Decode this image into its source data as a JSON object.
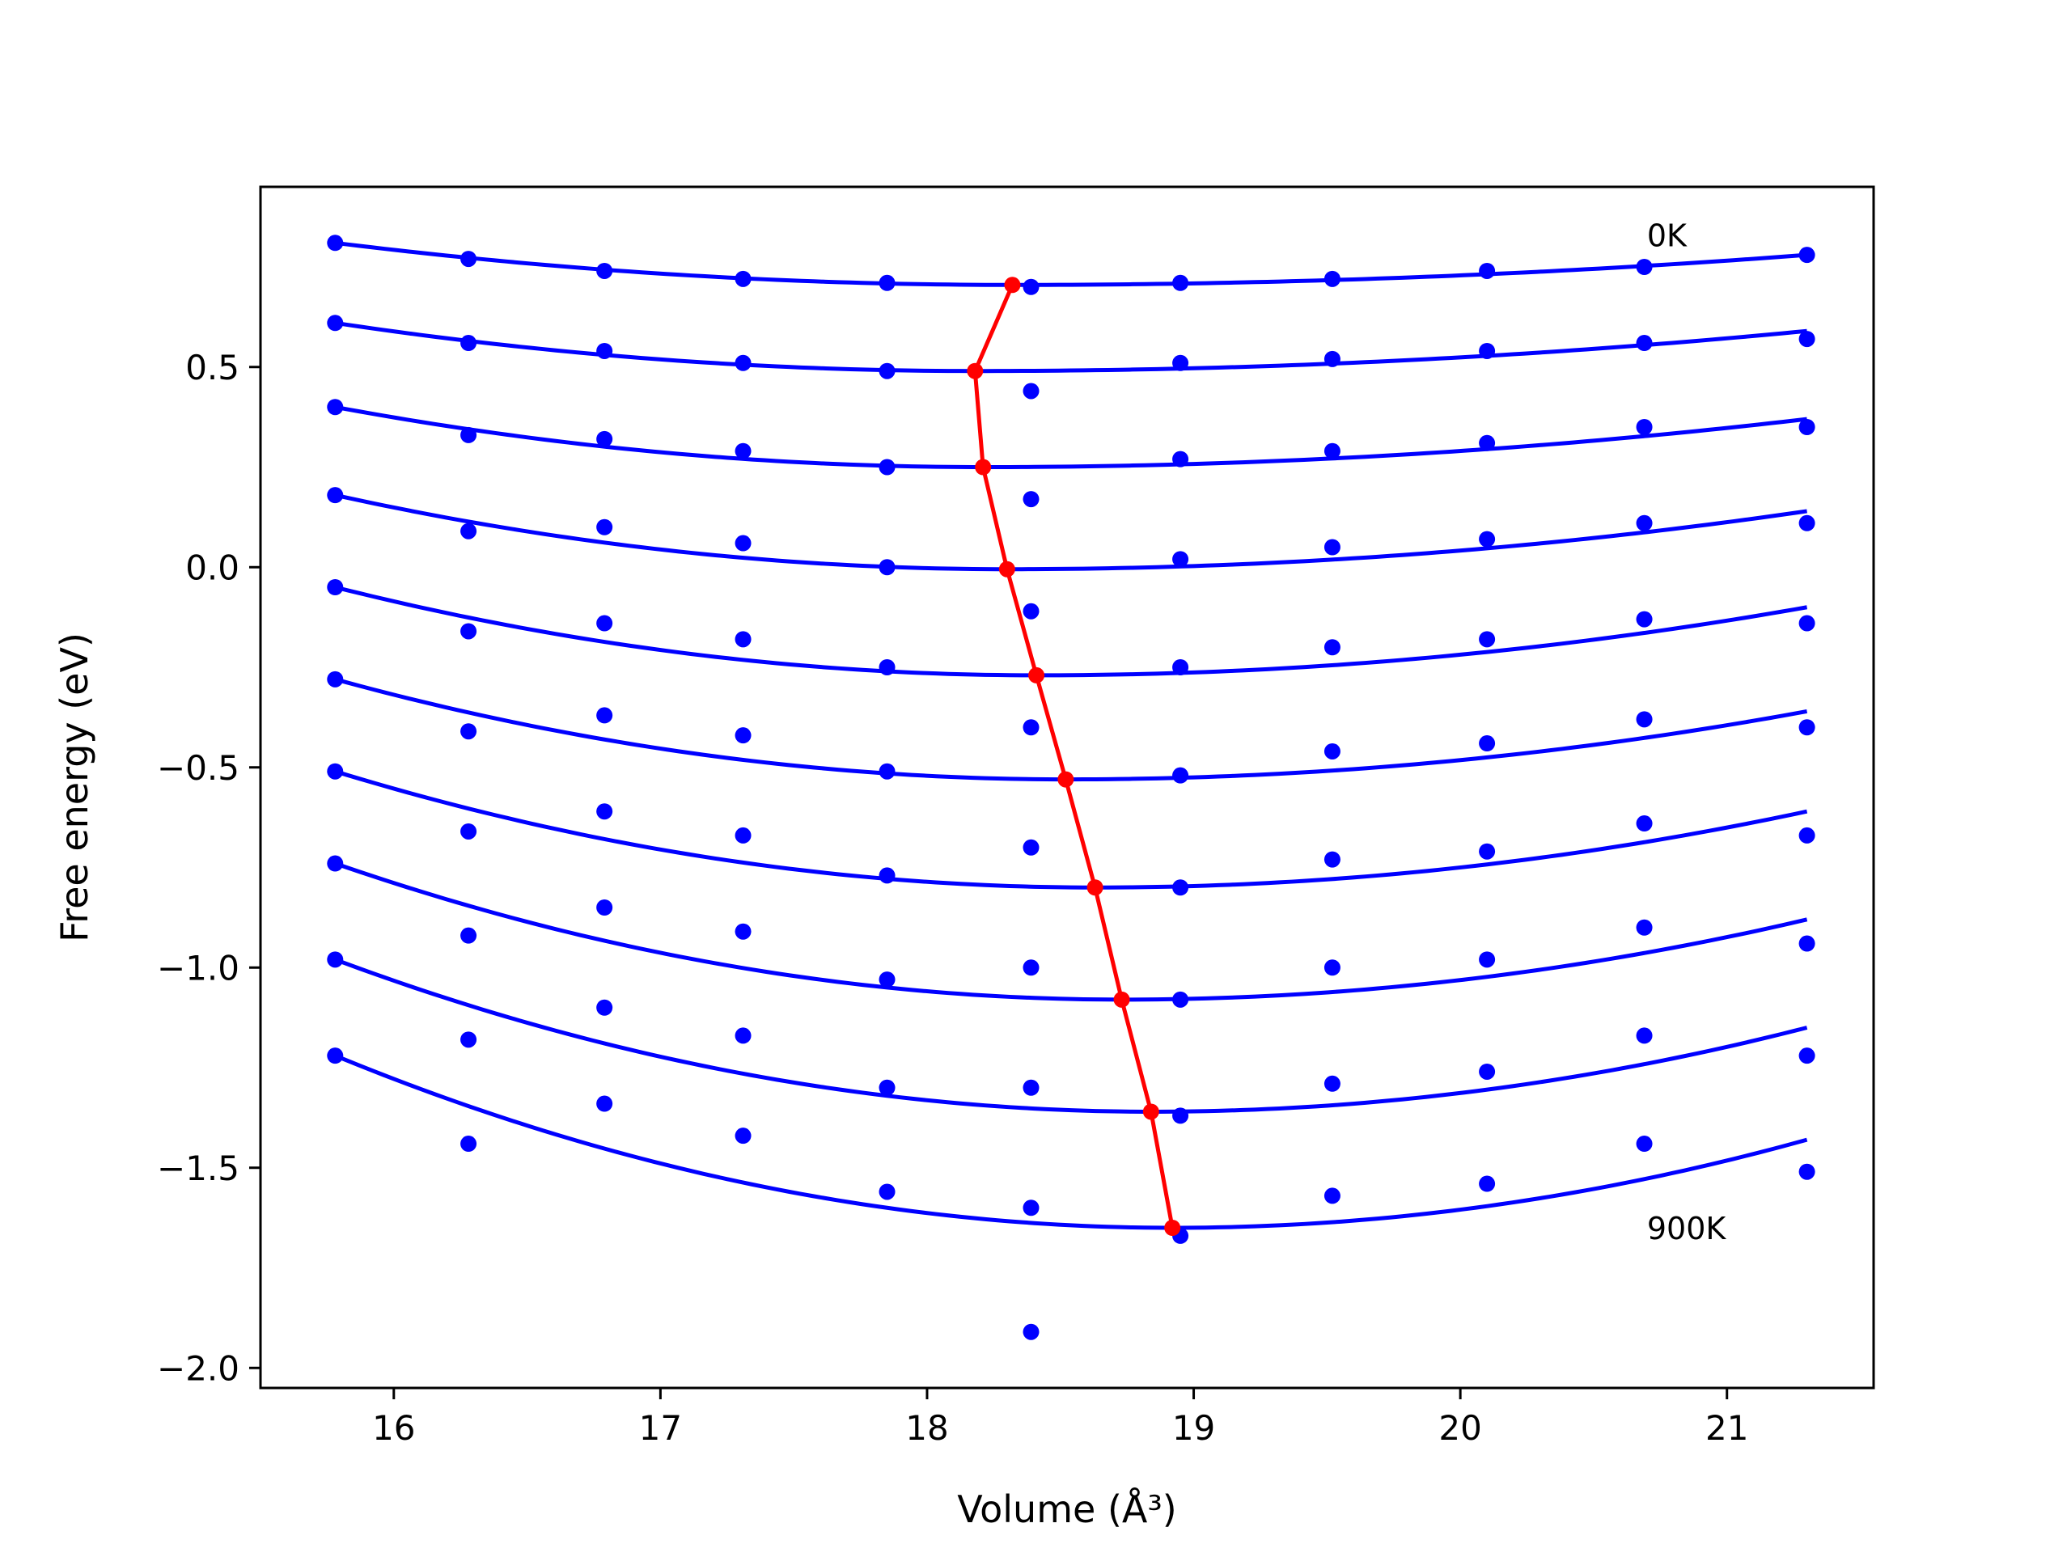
{
  "chart_data": {
    "type": "line",
    "title": "",
    "xlabel": "Volume (Å³)",
    "ylabel": "Free energy (eV)",
    "xlim": [
      15.5,
      21.55
    ],
    "ylim": [
      -2.05,
      0.95
    ],
    "xticks": [
      16,
      17,
      18,
      19,
      20,
      21
    ],
    "yticks": [
      0.5,
      0.0,
      -0.5,
      -1.0,
      -1.5,
      -2.0
    ],
    "xtick_labels": [
      "16",
      "17",
      "18",
      "19",
      "20",
      "21"
    ],
    "ytick_labels": [
      "0.5",
      "0.0",
      "−0.5",
      "−1.0",
      "−1.5",
      "−2.0"
    ],
    "grid": false,
    "legend": "none",
    "colors": {
      "data": "#0000ff",
      "fit": "#0000ff",
      "minimum": "#ff0000"
    },
    "x": [
      15.78,
      16.28,
      16.79,
      17.31,
      17.85,
      18.39,
      18.95,
      19.52,
      20.1,
      20.69,
      21.3
    ],
    "series": [
      {
        "temperature_label": "0K",
        "values": [
          0.81,
          0.77,
          0.74,
          0.72,
          0.71,
          0.7,
          0.71,
          0.72,
          0.74,
          0.75,
          0.78
        ],
        "fit_endpoints": [
          0.81,
          0.78
        ],
        "minimum": [
          18.32,
          0.705
        ]
      },
      {
        "values": [
          0.61,
          0.56,
          0.54,
          0.51,
          0.49,
          0.44,
          0.51,
          0.52,
          0.54,
          0.56,
          0.57
        ],
        "fit_endpoints": [
          0.61,
          0.59
        ],
        "minimum": [
          18.18,
          0.49
        ]
      },
      {
        "values": [
          0.4,
          0.33,
          0.32,
          0.29,
          0.25,
          0.17,
          0.27,
          0.29,
          0.31,
          0.35,
          0.35
        ],
        "fit_endpoints": [
          0.4,
          0.37
        ],
        "minimum": [
          18.21,
          0.25
        ]
      },
      {
        "values": [
          0.18,
          0.09,
          0.1,
          0.06,
          0.0,
          -0.11,
          0.02,
          0.05,
          0.07,
          0.11,
          0.11
        ],
        "fit_endpoints": [
          0.18,
          0.14
        ],
        "minimum": [
          18.3,
          -0.005
        ]
      },
      {
        "values": [
          -0.05,
          -0.16,
          -0.14,
          -0.18,
          -0.25,
          -0.4,
          -0.25,
          -0.2,
          -0.18,
          -0.13,
          -0.14
        ],
        "fit_endpoints": [
          -0.05,
          -0.1
        ],
        "minimum": [
          18.41,
          -0.27
        ]
      },
      {
        "values": [
          -0.28,
          -0.41,
          -0.37,
          -0.42,
          -0.51,
          -0.7,
          -0.52,
          -0.46,
          -0.44,
          -0.38,
          -0.4
        ],
        "fit_endpoints": [
          -0.28,
          -0.36
        ],
        "minimum": [
          18.52,
          -0.53
        ]
      },
      {
        "values": [
          -0.51,
          -0.66,
          -0.61,
          -0.67,
          -0.77,
          -1.0,
          -0.8,
          -0.73,
          -0.71,
          -0.64,
          -0.67
        ],
        "fit_endpoints": [
          -0.51,
          -0.61
        ],
        "minimum": [
          18.63,
          -0.8
        ]
      },
      {
        "values": [
          -0.74,
          -0.92,
          -0.85,
          -0.91,
          -1.03,
          -1.3,
          -1.08,
          -1.0,
          -0.98,
          -0.9,
          -0.94
        ],
        "fit_endpoints": [
          -0.74,
          -0.88
        ],
        "minimum": [
          18.73,
          -1.08
        ]
      },
      {
        "values": [
          -0.98,
          -1.18,
          -1.1,
          -1.17,
          -1.3,
          -1.6,
          -1.37,
          -1.29,
          -1.26,
          -1.17,
          -1.22
        ],
        "fit_endpoints": [
          -0.98,
          -1.15
        ],
        "minimum": [
          18.84,
          -1.36
        ]
      },
      {
        "temperature_label": "900K",
        "values": [
          -1.22,
          -1.44,
          -1.34,
          -1.42,
          -1.56,
          -1.91,
          -1.67,
          -1.57,
          -1.54,
          -1.44,
          -1.51
        ],
        "fit_endpoints": [
          -1.22,
          -1.43
        ],
        "minimum": [
          18.92,
          -1.65
        ]
      }
    ],
    "annotations": [
      {
        "text": "0K",
        "x": 20.7,
        "y": 0.83
      },
      {
        "text": "900K",
        "x": 20.7,
        "y": -1.65
      }
    ]
  }
}
